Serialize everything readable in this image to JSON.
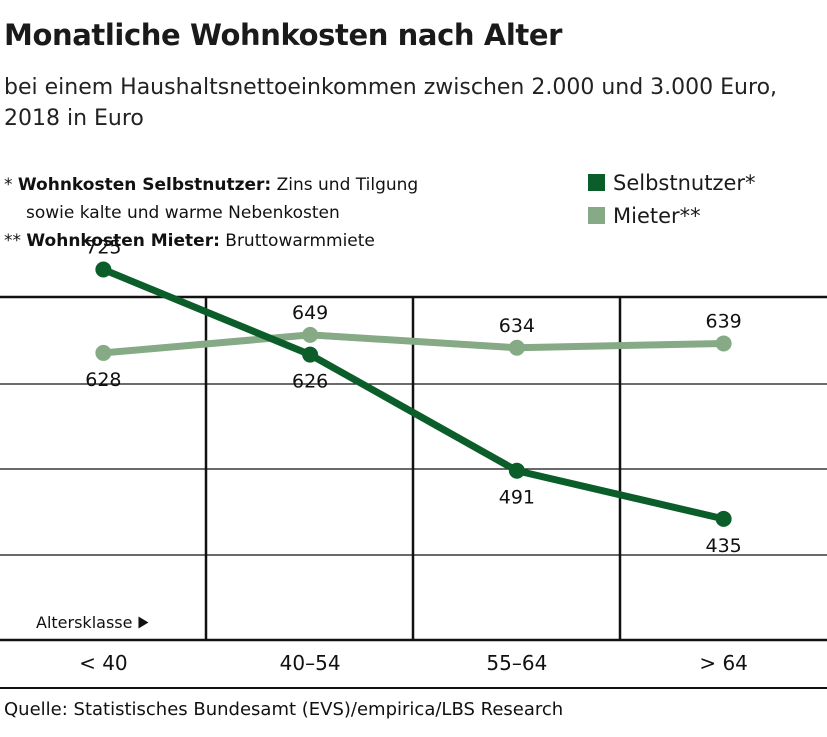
{
  "title": "Monatliche Wohnkosten nach Alter",
  "subtitle": "bei einem Haushaltsnettoeinkommen zwischen 2.000 und 3.000 Euro, 2018 in Euro",
  "notes": [
    {
      "marker": "*",
      "bold": "Wohnkosten Selbstnutzer:",
      "text": "Zins und Tilgung"
    },
    {
      "marker": "",
      "bold": "",
      "text": "sowie kalte und warme Nebenkosten"
    },
    {
      "marker": "**",
      "bold": "Wohnkosten Mieter:",
      "text": "Bruttowarmmiete"
    }
  ],
  "source": "Quelle: Statistisches Bundesamt (EVS)/empirica/LBS Research",
  "chart_data": {
    "type": "line",
    "title": "Monatliche Wohnkosten nach Alter",
    "xlabel": "Altersklasse",
    "ylabel": "",
    "categories": [
      "< 40",
      "40–54",
      "55–64",
      "> 64"
    ],
    "ylim": [
      300,
      800
    ],
    "grid": true,
    "legend_position": "top-right",
    "series": [
      {
        "name": "Selbstnutzer*",
        "color": "#0b5e2a",
        "values": [
          725,
          626,
          491,
          435
        ],
        "label_position": [
          "above",
          "below",
          "below",
          "below"
        ]
      },
      {
        "name": "Mieter**",
        "color": "#86aa85",
        "values": [
          628,
          649,
          634,
          639
        ],
        "label_position": [
          "below",
          "above",
          "above",
          "above"
        ]
      }
    ]
  }
}
